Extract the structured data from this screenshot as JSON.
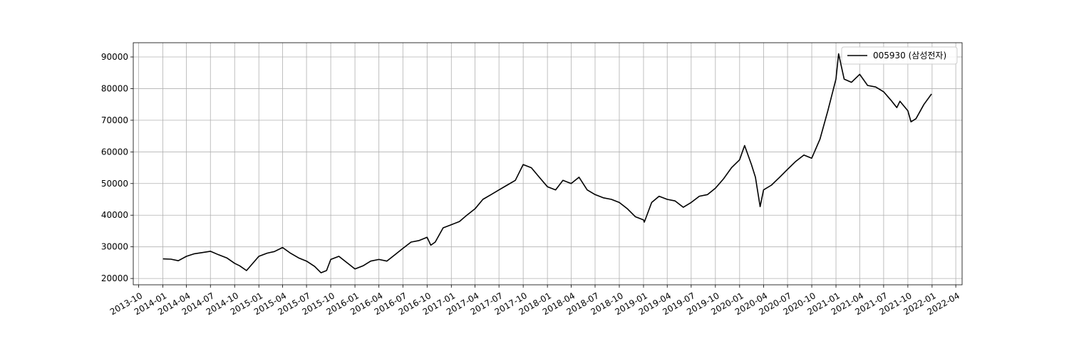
{
  "chart_data": {
    "type": "line",
    "title": "",
    "xlabel": "",
    "ylabel": "",
    "grid": true,
    "legend_position": "top-right",
    "ylim": [
      18000,
      94500
    ],
    "xlim": [
      "2013-09-11",
      "2022-04-25"
    ],
    "x_ticks": [
      "2013-10",
      "2014-01",
      "2014-04",
      "2014-07",
      "2014-10",
      "2015-01",
      "2015-04",
      "2015-07",
      "2015-10",
      "2016-01",
      "2016-04",
      "2016-07",
      "2016-10",
      "2017-01",
      "2017-04",
      "2017-07",
      "2017-10",
      "2018-01",
      "2018-04",
      "2018-07",
      "2018-10",
      "2019-01",
      "2019-04",
      "2019-07",
      "2019-10",
      "2020-01",
      "2020-04",
      "2020-07",
      "2020-10",
      "2021-01",
      "2021-04",
      "2021-07",
      "2021-10",
      "2022-01",
      "2022-04"
    ],
    "y_ticks": [
      20000,
      30000,
      40000,
      50000,
      60000,
      70000,
      80000,
      90000
    ],
    "series": [
      {
        "name": "005930 (삼성전자)",
        "color": "#000000",
        "x": [
          "2014-01-02",
          "2014-02-01",
          "2014-03-01",
          "2014-04-01",
          "2014-05-01",
          "2014-06-01",
          "2014-07-01",
          "2014-08-01",
          "2014-09-01",
          "2014-10-01",
          "2014-10-20",
          "2014-11-15",
          "2015-01-01",
          "2015-02-01",
          "2015-03-01",
          "2015-04-01",
          "2015-05-01",
          "2015-06-01",
          "2015-07-01",
          "2015-08-01",
          "2015-08-25",
          "2015-09-15",
          "2015-10-01",
          "2015-11-01",
          "2016-01-01",
          "2016-02-01",
          "2016-03-01",
          "2016-04-01",
          "2016-05-01",
          "2016-06-01",
          "2016-07-01",
          "2016-08-01",
          "2016-09-01",
          "2016-10-01",
          "2016-10-15",
          "2016-11-01",
          "2016-12-01",
          "2017-01-01",
          "2017-02-01",
          "2017-03-01",
          "2017-04-01",
          "2017-05-01",
          "2017-06-01",
          "2017-07-01",
          "2017-08-01",
          "2017-09-01",
          "2017-10-01",
          "2017-11-01",
          "2017-12-01",
          "2018-01-01",
          "2018-02-01",
          "2018-03-01",
          "2018-04-01",
          "2018-05-01",
          "2018-06-01",
          "2018-07-01",
          "2018-08-01",
          "2018-09-01",
          "2018-10-01",
          "2018-11-01",
          "2018-12-01",
          "2019-01-01",
          "2019-01-04",
          "2019-02-01",
          "2019-03-01",
          "2019-04-01",
          "2019-05-01",
          "2019-06-01",
          "2019-07-01",
          "2019-08-01",
          "2019-09-01",
          "2019-10-01",
          "2019-11-01",
          "2019-12-01",
          "2020-01-01",
          "2020-01-20",
          "2020-02-15",
          "2020-03-01",
          "2020-03-19",
          "2020-04-01",
          "2020-05-01",
          "2020-06-01",
          "2020-07-01",
          "2020-08-01",
          "2020-09-01",
          "2020-10-01",
          "2020-11-01",
          "2020-12-01",
          "2021-01-01",
          "2021-01-11",
          "2021-02-01",
          "2021-03-01",
          "2021-04-01",
          "2021-05-01",
          "2021-06-01",
          "2021-07-01",
          "2021-08-01",
          "2021-08-20",
          "2021-09-01",
          "2021-10-01",
          "2021-10-13",
          "2021-11-01",
          "2021-12-01",
          "2021-12-30"
        ],
        "values": [
          26200,
          26100,
          25600,
          27000,
          27800,
          28200,
          28600,
          27500,
          26500,
          24800,
          24000,
          22500,
          27000,
          28000,
          28500,
          29800,
          28000,
          26500,
          25500,
          23800,
          21800,
          22500,
          26000,
          27000,
          23000,
          24000,
          25500,
          26000,
          25500,
          27500,
          29500,
          31500,
          32000,
          33000,
          30500,
          31500,
          36000,
          37000,
          38000,
          40000,
          42000,
          45000,
          46500,
          48000,
          49500,
          51000,
          56000,
          55000,
          52000,
          49000,
          48000,
          51000,
          50000,
          52000,
          48000,
          46500,
          45500,
          45000,
          44000,
          42000,
          39500,
          38500,
          37800,
          44000,
          46000,
          45000,
          44500,
          42500,
          44000,
          46000,
          46500,
          48500,
          51500,
          55000,
          57500,
          62000,
          56000,
          52000,
          42700,
          48000,
          49500,
          52000,
          54500,
          57000,
          59000,
          58000,
          64000,
          73000,
          83000,
          91000,
          83000,
          82000,
          84500,
          81000,
          80500,
          79000,
          76000,
          74000,
          76000,
          73000,
          69500,
          70500,
          75000,
          78300
        ]
      }
    ]
  }
}
